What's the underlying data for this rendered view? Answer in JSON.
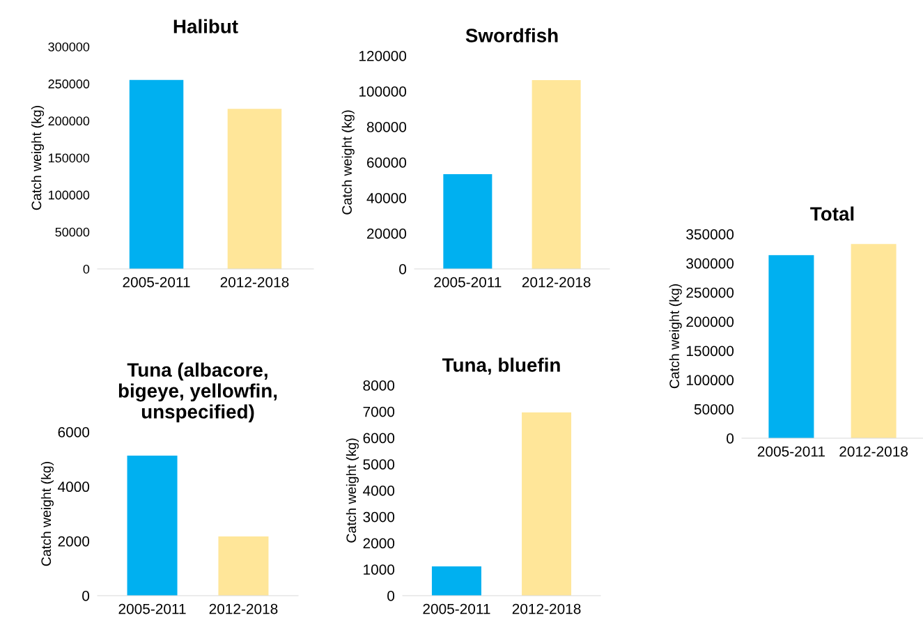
{
  "chart_data": [
    {
      "type": "bar",
      "title": "Halibut",
      "ylabel": "Catch weight (kg)",
      "categories": [
        "2005-2011",
        "2012-2018"
      ],
      "values": [
        255000,
        216000
      ],
      "colors": [
        "#00b0f0",
        "#ffe699"
      ],
      "ylim": [
        0,
        300000
      ],
      "yticks": [
        0,
        50000,
        100000,
        150000,
        200000,
        250000,
        300000
      ],
      "grid": false,
      "legend": false
    },
    {
      "type": "bar",
      "title": "Swordfish",
      "ylabel": "Catch weight (kg)",
      "categories": [
        "2005-2011",
        "2012-2018"
      ],
      "values": [
        53300,
        106300
      ],
      "colors": [
        "#00b0f0",
        "#ffe699"
      ],
      "ylim": [
        0,
        120000
      ],
      "yticks": [
        0,
        20000,
        40000,
        60000,
        80000,
        100000,
        120000
      ],
      "grid": false,
      "legend": false
    },
    {
      "type": "bar",
      "title": "Total",
      "ylabel": "Catch weight (kg)",
      "categories": [
        "2005-2011",
        "2012-2018"
      ],
      "values": [
        314000,
        333000
      ],
      "colors": [
        "#00b0f0",
        "#ffe699"
      ],
      "ylim": [
        0,
        350000
      ],
      "yticks": [
        0,
        50000,
        100000,
        150000,
        200000,
        250000,
        300000,
        350000
      ],
      "grid": false,
      "legend": false
    },
    {
      "type": "bar",
      "title": "Tuna (albacore,\nbigeye, yellowfin,\nunspecified)",
      "ylabel": "Catch weight (kg)",
      "categories": [
        "2005-2011",
        "2012-2018"
      ],
      "values": [
        5130,
        2170
      ],
      "colors": [
        "#00b0f0",
        "#ffe699"
      ],
      "ylim": [
        0,
        6000
      ],
      "yticks": [
        0,
        2000,
        4000,
        6000
      ],
      "grid": false,
      "legend": false
    },
    {
      "type": "bar",
      "title": "Tuna, bluefin",
      "ylabel": "Catch weight (kg)",
      "categories": [
        "2005-2011",
        "2012-2018"
      ],
      "values": [
        1110,
        6970
      ],
      "colors": [
        "#00b0f0",
        "#ffe699"
      ],
      "ylim": [
        0,
        8000
      ],
      "yticks": [
        0,
        1000,
        2000,
        3000,
        4000,
        5000,
        6000,
        7000,
        8000
      ],
      "grid": false,
      "legend": false
    }
  ]
}
